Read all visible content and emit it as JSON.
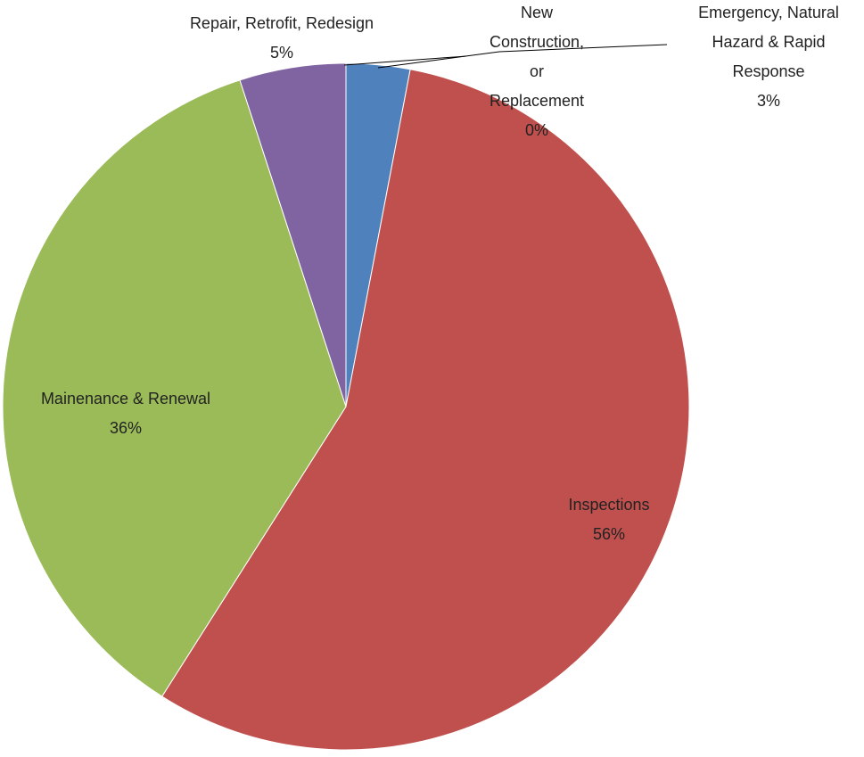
{
  "chart_data": {
    "type": "pie",
    "categories": [
      "Emergency, Natural Hazard & Rapid Response",
      "Inspections",
      "Mainenance & Renewal",
      "Repair, Retrofit, Redesign",
      "New Construction, or Replacement"
    ],
    "values": [
      3,
      56,
      36,
      5,
      0
    ],
    "value_labels": [
      "3%",
      "56%",
      "36%",
      "5%",
      "0%"
    ],
    "colors": [
      "#4f81bd",
      "#c0504d",
      "#9bbb59",
      "#8064a2",
      "#4bacc6"
    ]
  }
}
